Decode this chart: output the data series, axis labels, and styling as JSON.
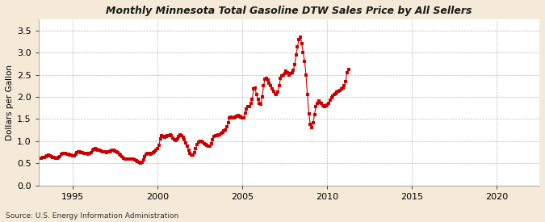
{
  "title": "Monthly Minnesota Total Gasoline DTW Sales Price by All Sellers",
  "ylabel": "Dollars per Gallon",
  "source": "Source: U.S. Energy Information Administration",
  "fig_bg_color": "#f5ead8",
  "plot_bg_color": "#ffffff",
  "marker_color": "#cc0000",
  "grid_color": "#aaaaaa",
  "xlim": [
    1993.0,
    2022.5
  ],
  "ylim": [
    0.0,
    3.75
  ],
  "yticks": [
    0.0,
    0.5,
    1.0,
    1.5,
    2.0,
    2.5,
    3.0,
    3.5
  ],
  "xticks": [
    1995,
    2000,
    2005,
    2010,
    2015,
    2020
  ],
  "data": [
    [
      1993.17,
      0.62
    ],
    [
      1993.25,
      0.63
    ],
    [
      1993.33,
      0.64
    ],
    [
      1993.42,
      0.65
    ],
    [
      1993.5,
      0.67
    ],
    [
      1993.58,
      0.68
    ],
    [
      1993.67,
      0.67
    ],
    [
      1993.75,
      0.66
    ],
    [
      1993.83,
      0.64
    ],
    [
      1993.92,
      0.63
    ],
    [
      1994.0,
      0.62
    ],
    [
      1994.08,
      0.61
    ],
    [
      1994.17,
      0.63
    ],
    [
      1994.25,
      0.66
    ],
    [
      1994.33,
      0.7
    ],
    [
      1994.42,
      0.72
    ],
    [
      1994.5,
      0.73
    ],
    [
      1994.58,
      0.72
    ],
    [
      1994.67,
      0.71
    ],
    [
      1994.75,
      0.7
    ],
    [
      1994.83,
      0.69
    ],
    [
      1994.92,
      0.68
    ],
    [
      1995.0,
      0.67
    ],
    [
      1995.08,
      0.67
    ],
    [
      1995.17,
      0.7
    ],
    [
      1995.25,
      0.74
    ],
    [
      1995.33,
      0.76
    ],
    [
      1995.42,
      0.76
    ],
    [
      1995.5,
      0.75
    ],
    [
      1995.58,
      0.74
    ],
    [
      1995.67,
      0.73
    ],
    [
      1995.75,
      0.72
    ],
    [
      1995.83,
      0.72
    ],
    [
      1995.92,
      0.71
    ],
    [
      1996.0,
      0.72
    ],
    [
      1996.08,
      0.75
    ],
    [
      1996.17,
      0.79
    ],
    [
      1996.25,
      0.82
    ],
    [
      1996.33,
      0.83
    ],
    [
      1996.42,
      0.82
    ],
    [
      1996.5,
      0.8
    ],
    [
      1996.58,
      0.79
    ],
    [
      1996.67,
      0.78
    ],
    [
      1996.75,
      0.77
    ],
    [
      1996.83,
      0.76
    ],
    [
      1996.92,
      0.76
    ],
    [
      1997.0,
      0.75
    ],
    [
      1997.08,
      0.76
    ],
    [
      1997.17,
      0.77
    ],
    [
      1997.25,
      0.78
    ],
    [
      1997.33,
      0.79
    ],
    [
      1997.42,
      0.79
    ],
    [
      1997.5,
      0.78
    ],
    [
      1997.58,
      0.77
    ],
    [
      1997.67,
      0.74
    ],
    [
      1997.75,
      0.71
    ],
    [
      1997.83,
      0.68
    ],
    [
      1997.92,
      0.65
    ],
    [
      1998.0,
      0.62
    ],
    [
      1998.08,
      0.6
    ],
    [
      1998.17,
      0.59
    ],
    [
      1998.25,
      0.59
    ],
    [
      1998.33,
      0.6
    ],
    [
      1998.42,
      0.6
    ],
    [
      1998.5,
      0.6
    ],
    [
      1998.58,
      0.59
    ],
    [
      1998.67,
      0.58
    ],
    [
      1998.75,
      0.56
    ],
    [
      1998.83,
      0.54
    ],
    [
      1998.92,
      0.52
    ],
    [
      1999.0,
      0.51
    ],
    [
      1999.08,
      0.52
    ],
    [
      1999.17,
      0.57
    ],
    [
      1999.25,
      0.65
    ],
    [
      1999.33,
      0.7
    ],
    [
      1999.42,
      0.72
    ],
    [
      1999.5,
      0.72
    ],
    [
      1999.58,
      0.71
    ],
    [
      1999.67,
      0.72
    ],
    [
      1999.75,
      0.74
    ],
    [
      1999.83,
      0.76
    ],
    [
      1999.92,
      0.79
    ],
    [
      2000.0,
      0.84
    ],
    [
      2000.08,
      0.9
    ],
    [
      2000.17,
      1.06
    ],
    [
      2000.25,
      1.12
    ],
    [
      2000.33,
      1.1
    ],
    [
      2000.42,
      1.08
    ],
    [
      2000.5,
      1.1
    ],
    [
      2000.58,
      1.12
    ],
    [
      2000.67,
      1.13
    ],
    [
      2000.75,
      1.14
    ],
    [
      2000.83,
      1.12
    ],
    [
      2000.92,
      1.07
    ],
    [
      2001.0,
      1.04
    ],
    [
      2001.08,
      1.02
    ],
    [
      2001.17,
      1.05
    ],
    [
      2001.25,
      1.1
    ],
    [
      2001.33,
      1.14
    ],
    [
      2001.42,
      1.13
    ],
    [
      2001.5,
      1.09
    ],
    [
      2001.58,
      1.04
    ],
    [
      2001.67,
      0.97
    ],
    [
      2001.75,
      0.88
    ],
    [
      2001.83,
      0.8
    ],
    [
      2001.92,
      0.72
    ],
    [
      2002.0,
      0.68
    ],
    [
      2002.08,
      0.69
    ],
    [
      2002.17,
      0.75
    ],
    [
      2002.25,
      0.83
    ],
    [
      2002.33,
      0.92
    ],
    [
      2002.42,
      0.98
    ],
    [
      2002.5,
      1.0
    ],
    [
      2002.58,
      1.0
    ],
    [
      2002.67,
      0.98
    ],
    [
      2002.75,
      0.95
    ],
    [
      2002.83,
      0.92
    ],
    [
      2002.92,
      0.9
    ],
    [
      2003.0,
      0.89
    ],
    [
      2003.08,
      0.88
    ],
    [
      2003.17,
      0.95
    ],
    [
      2003.25,
      1.03
    ],
    [
      2003.33,
      1.1
    ],
    [
      2003.42,
      1.12
    ],
    [
      2003.5,
      1.13
    ],
    [
      2003.58,
      1.14
    ],
    [
      2003.67,
      1.15
    ],
    [
      2003.75,
      1.18
    ],
    [
      2003.83,
      1.2
    ],
    [
      2003.92,
      1.23
    ],
    [
      2004.0,
      1.26
    ],
    [
      2004.08,
      1.32
    ],
    [
      2004.17,
      1.42
    ],
    [
      2004.25,
      1.52
    ],
    [
      2004.33,
      1.55
    ],
    [
      2004.42,
      1.52
    ],
    [
      2004.5,
      1.52
    ],
    [
      2004.58,
      1.54
    ],
    [
      2004.67,
      1.56
    ],
    [
      2004.75,
      1.58
    ],
    [
      2004.83,
      1.57
    ],
    [
      2004.92,
      1.55
    ],
    [
      2005.0,
      1.52
    ],
    [
      2005.08,
      1.52
    ],
    [
      2005.17,
      1.63
    ],
    [
      2005.25,
      1.73
    ],
    [
      2005.33,
      1.78
    ],
    [
      2005.42,
      1.79
    ],
    [
      2005.5,
      1.86
    ],
    [
      2005.58,
      1.95
    ],
    [
      2005.67,
      2.18
    ],
    [
      2005.75,
      2.2
    ],
    [
      2005.83,
      2.05
    ],
    [
      2005.92,
      1.95
    ],
    [
      2006.0,
      1.85
    ],
    [
      2006.08,
      1.83
    ],
    [
      2006.17,
      2.0
    ],
    [
      2006.25,
      2.25
    ],
    [
      2006.33,
      2.4
    ],
    [
      2006.42,
      2.42
    ],
    [
      2006.5,
      2.38
    ],
    [
      2006.58,
      2.3
    ],
    [
      2006.67,
      2.25
    ],
    [
      2006.75,
      2.18
    ],
    [
      2006.83,
      2.12
    ],
    [
      2006.92,
      2.08
    ],
    [
      2007.0,
      2.05
    ],
    [
      2007.08,
      2.1
    ],
    [
      2007.17,
      2.25
    ],
    [
      2007.25,
      2.42
    ],
    [
      2007.33,
      2.48
    ],
    [
      2007.42,
      2.5
    ],
    [
      2007.5,
      2.52
    ],
    [
      2007.58,
      2.58
    ],
    [
      2007.67,
      2.55
    ],
    [
      2007.75,
      2.5
    ],
    [
      2007.83,
      2.52
    ],
    [
      2007.92,
      2.55
    ],
    [
      2008.0,
      2.6
    ],
    [
      2008.08,
      2.72
    ],
    [
      2008.17,
      2.95
    ],
    [
      2008.25,
      3.12
    ],
    [
      2008.33,
      3.3
    ],
    [
      2008.42,
      3.35
    ],
    [
      2008.5,
      3.2
    ],
    [
      2008.58,
      3.0
    ],
    [
      2008.67,
      2.8
    ],
    [
      2008.75,
      2.5
    ],
    [
      2008.83,
      2.05
    ],
    [
      2008.92,
      1.62
    ],
    [
      2009.0,
      1.38
    ],
    [
      2009.08,
      1.3
    ],
    [
      2009.17,
      1.42
    ],
    [
      2009.25,
      1.6
    ],
    [
      2009.33,
      1.78
    ],
    [
      2009.42,
      1.85
    ],
    [
      2009.5,
      1.9
    ],
    [
      2009.58,
      1.88
    ],
    [
      2009.67,
      1.85
    ],
    [
      2009.75,
      1.8
    ],
    [
      2009.83,
      1.78
    ],
    [
      2009.92,
      1.8
    ],
    [
      2010.0,
      1.82
    ],
    [
      2010.08,
      1.85
    ],
    [
      2010.17,
      1.92
    ],
    [
      2010.25,
      1.98
    ],
    [
      2010.33,
      2.02
    ],
    [
      2010.42,
      2.05
    ],
    [
      2010.5,
      2.08
    ],
    [
      2010.58,
      2.1
    ],
    [
      2010.67,
      2.12
    ],
    [
      2010.75,
      2.15
    ],
    [
      2010.83,
      2.18
    ],
    [
      2010.92,
      2.2
    ],
    [
      2011.0,
      2.25
    ],
    [
      2011.08,
      2.35
    ],
    [
      2011.17,
      2.55
    ],
    [
      2011.25,
      2.62
    ]
  ]
}
